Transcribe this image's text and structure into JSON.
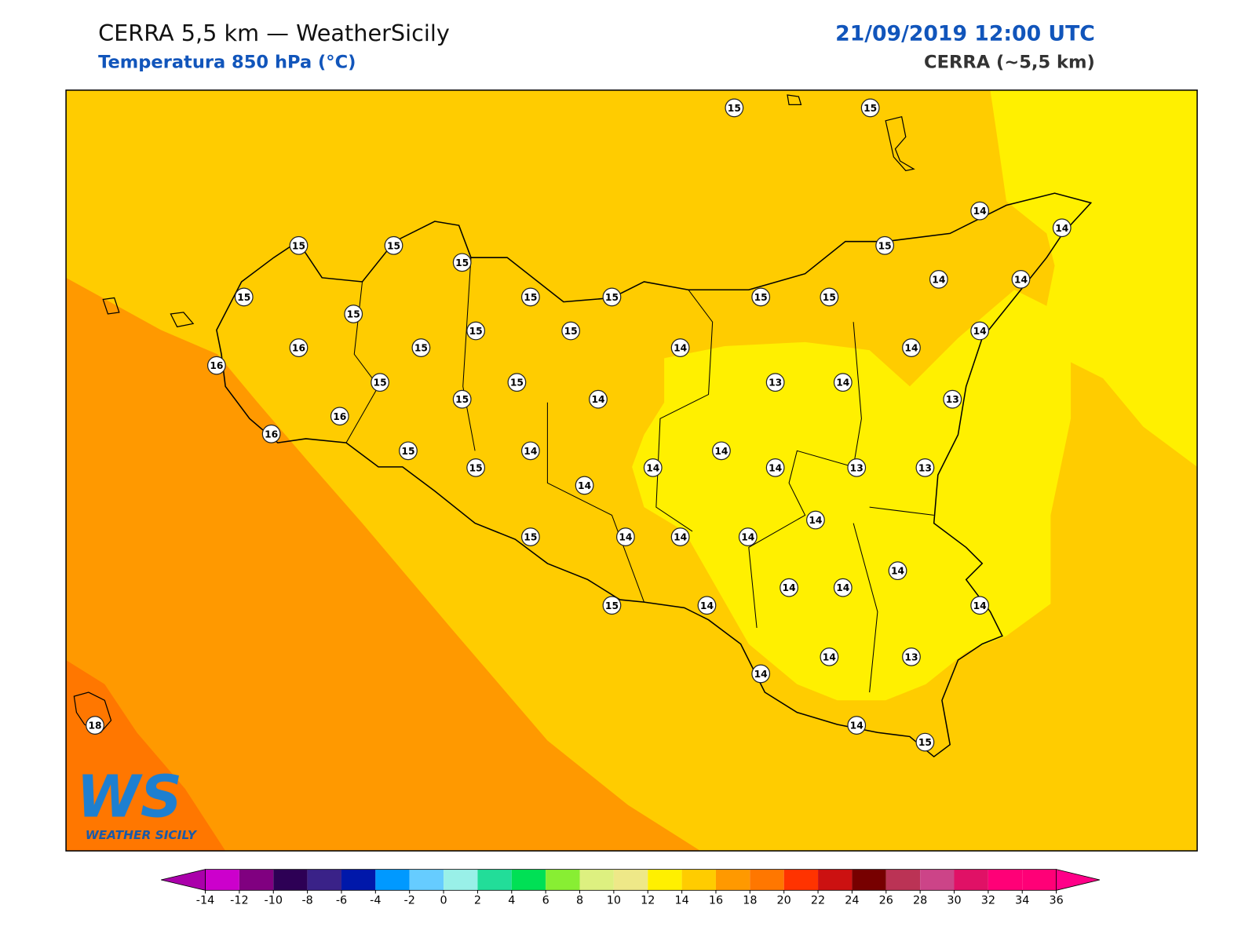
{
  "header": {
    "title": "CERRA 5,5 km — WeatherSicily",
    "subtitle": "Temperatura 850 hPa (°C)",
    "datetime": "21/09/2019 12:00 UTC",
    "model": "CERRA (~5,5 km)"
  },
  "stations": [
    15,
    15,
    14,
    14,
    15,
    15,
    15,
    15,
    15,
    15,
    15,
    15,
    15,
    14,
    14,
    15,
    15,
    15,
    14,
    16,
    15,
    14,
    14,
    16,
    15,
    15,
    13,
    14,
    15,
    14,
    13,
    16,
    16,
    15,
    14,
    14,
    15,
    14,
    14,
    13,
    13,
    14,
    14,
    15,
    14,
    14,
    14,
    14,
    14,
    14,
    14,
    15,
    14,
    14,
    13,
    14,
    14,
    15,
    18
  ],
  "logo": {
    "mark": "WS",
    "text": "WEATHER SICILY"
  },
  "colorbar": {
    "ticks": [
      -14,
      -12,
      -10,
      -8,
      -6,
      -4,
      -2,
      0,
      2,
      4,
      6,
      8,
      10,
      12,
      14,
      16,
      18,
      20,
      22,
      24,
      26,
      28,
      30,
      32,
      34,
      36
    ],
    "colors": [
      "#cc00cc",
      "#800080",
      "#2d0055",
      "#3a2288",
      "#0018aa",
      "#0099ff",
      "#66ccff",
      "#99f0e8",
      "#22dd99",
      "#00e055",
      "#88ee33",
      "#ddf080",
      "#eee888",
      "#fff000",
      "#ffcc00",
      "#ff9900",
      "#ff7700",
      "#ff3300",
      "#cc1111",
      "#770000",
      "#bb3355",
      "#cc4488",
      "#e01166",
      "#ff0077",
      "#ff0077"
    ],
    "under_color": "#aa00aa",
    "over_color": "#ff0088"
  }
}
